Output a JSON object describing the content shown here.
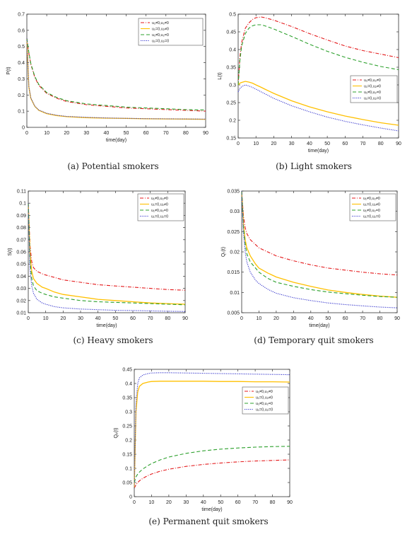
{
  "figure": {
    "colors": {
      "control_1": "#e41a1c",
      "control_2": "#ffc000",
      "control_3": "#2ca02c",
      "control_4": "#3333cc"
    },
    "line_styles": {
      "control_1": "dash-dot",
      "control_2": "solid",
      "control_3": "dashed",
      "control_4": "dotted"
    },
    "legend_labels": [
      "u₁≠0,u₂≠0",
      "u₁=0,u₂≠0",
      "u₁≠0,u₂=0",
      "u₁=0,u₂=0"
    ]
  },
  "chart_data": [
    {
      "id": "a",
      "type": "line",
      "caption": "(a) Potential smokers",
      "xlabel": "time(day)",
      "ylabel": "P(t)",
      "xlim": [
        0,
        90
      ],
      "ylim": [
        0,
        0.7
      ],
      "xticks": [
        0,
        10,
        20,
        30,
        40,
        50,
        60,
        70,
        80,
        90
      ],
      "yticks": [
        0,
        0.1,
        0.2,
        0.3,
        0.4,
        0.5,
        0.6,
        0.7
      ],
      "ytick_labels": [
        "0",
        "0.1",
        "0.2",
        "0.3",
        "0.4",
        "0.5",
        "0.6",
        "0.7"
      ],
      "legend_position": "top-right",
      "x": [
        0,
        1,
        2,
        4,
        6,
        10,
        15,
        20,
        30,
        40,
        50,
        60,
        70,
        80,
        90
      ],
      "series": [
        {
          "name": "u₁≠0,u₂≠0",
          "values": [
            0.55,
            0.46,
            0.39,
            0.31,
            0.26,
            0.21,
            0.18,
            0.16,
            0.14,
            0.13,
            0.12,
            0.115,
            0.11,
            0.105,
            0.1
          ]
        },
        {
          "name": "u₁=0,u₂≠0",
          "values": [
            0.55,
            0.25,
            0.18,
            0.13,
            0.105,
            0.085,
            0.073,
            0.066,
            0.06,
            0.057,
            0.055,
            0.053,
            0.052,
            0.051,
            0.05
          ]
        },
        {
          "name": "u₁≠0,u₂=0",
          "values": [
            0.55,
            0.465,
            0.395,
            0.315,
            0.265,
            0.215,
            0.185,
            0.165,
            0.145,
            0.135,
            0.125,
            0.12,
            0.115,
            0.11,
            0.107
          ]
        },
        {
          "name": "u₁=0,u₂=0",
          "values": [
            0.55,
            0.255,
            0.182,
            0.132,
            0.107,
            0.087,
            0.075,
            0.068,
            0.062,
            0.058,
            0.056,
            0.054,
            0.053,
            0.052,
            0.051
          ]
        }
      ]
    },
    {
      "id": "b",
      "type": "line",
      "caption": "(b) Light smokers",
      "xlabel": "time(day)",
      "ylabel": "L(t)",
      "xlim": [
        0,
        90
      ],
      "ylim": [
        0.15,
        0.5
      ],
      "xticks": [
        0,
        10,
        20,
        30,
        40,
        50,
        60,
        70,
        80,
        90
      ],
      "yticks": [
        0.15,
        0.2,
        0.25,
        0.3,
        0.35,
        0.4,
        0.45,
        0.5
      ],
      "ytick_labels": [
        "0.15",
        "0.2",
        "0.25",
        "0.3",
        "0.35",
        "0.4",
        "0.45",
        "0.5"
      ],
      "legend_position": "bottom-right",
      "x": [
        0,
        1,
        2,
        4,
        6,
        8,
        10,
        13,
        15,
        20,
        30,
        40,
        50,
        60,
        70,
        80,
        90
      ],
      "series": [
        {
          "name": "u₁≠0,u₂≠0",
          "values": [
            0.3,
            0.38,
            0.42,
            0.46,
            0.475,
            0.485,
            0.49,
            0.492,
            0.49,
            0.483,
            0.465,
            0.445,
            0.427,
            0.41,
            0.397,
            0.387,
            0.377
          ]
        },
        {
          "name": "u₁=0,u₂≠0",
          "values": [
            0.3,
            0.305,
            0.307,
            0.31,
            0.308,
            0.305,
            0.3,
            0.293,
            0.288,
            0.276,
            0.255,
            0.238,
            0.224,
            0.212,
            0.202,
            0.193,
            0.186
          ]
        },
        {
          "name": "u₁≠0,u₂=0",
          "values": [
            0.3,
            0.37,
            0.41,
            0.445,
            0.46,
            0.467,
            0.47,
            0.47,
            0.467,
            0.458,
            0.437,
            0.415,
            0.395,
            0.378,
            0.364,
            0.352,
            0.343
          ]
        },
        {
          "name": "u₁=0,u₂=0",
          "values": [
            0.28,
            0.29,
            0.295,
            0.3,
            0.297,
            0.293,
            0.288,
            0.28,
            0.275,
            0.262,
            0.241,
            0.224,
            0.209,
            0.197,
            0.187,
            0.178,
            0.17
          ]
        }
      ]
    },
    {
      "id": "c",
      "type": "line",
      "caption": "(c) Heavy smokers",
      "xlabel": "time(day)",
      "ylabel": "S(t)",
      "xlim": [
        0,
        90
      ],
      "ylim": [
        0.01,
        0.11
      ],
      "xticks": [
        0,
        10,
        20,
        30,
        40,
        50,
        60,
        70,
        80,
        90
      ],
      "yticks": [
        0.01,
        0.02,
        0.03,
        0.04,
        0.05,
        0.06,
        0.07,
        0.08,
        0.09,
        0.1,
        0.11
      ],
      "ytick_labels": [
        "0.01",
        "0.02",
        "0.03",
        "0.04",
        "0.05",
        "0.06",
        "0.07",
        "0.08",
        "0.09",
        "0.1",
        "0.11"
      ],
      "legend_position": "top-right",
      "x": [
        0,
        1,
        2,
        3,
        5,
        8,
        10,
        15,
        20,
        30,
        40,
        50,
        60,
        70,
        80,
        90
      ],
      "series": [
        {
          "name": "u₁≠0,u₂≠0",
          "values": [
            0.1,
            0.065,
            0.052,
            0.047,
            0.044,
            0.042,
            0.041,
            0.039,
            0.037,
            0.035,
            0.033,
            0.032,
            0.031,
            0.03,
            0.029,
            0.0285
          ]
        },
        {
          "name": "u₁=0,u₂≠0",
          "values": [
            0.1,
            0.058,
            0.044,
            0.038,
            0.034,
            0.031,
            0.03,
            0.027,
            0.025,
            0.023,
            0.021,
            0.02,
            0.019,
            0.018,
            0.0175,
            0.017
          ]
        },
        {
          "name": "u₁≠0,u₂=0",
          "values": [
            0.1,
            0.052,
            0.038,
            0.032,
            0.028,
            0.026,
            0.025,
            0.023,
            0.022,
            0.02,
            0.019,
            0.0185,
            0.018,
            0.0175,
            0.017,
            0.0165
          ]
        },
        {
          "name": "u₁=0,u₂=0",
          "values": [
            0.1,
            0.045,
            0.032,
            0.026,
            0.021,
            0.018,
            0.017,
            0.015,
            0.014,
            0.013,
            0.0125,
            0.012,
            0.0118,
            0.0115,
            0.0112,
            0.011
          ]
        }
      ]
    },
    {
      "id": "d",
      "type": "line",
      "caption": "(d) Temporary quit smokers",
      "xlabel": "time(day)",
      "ylabel": "Qₜ(t)",
      "xlim": [
        0,
        90
      ],
      "ylim": [
        0.005,
        0.035
      ],
      "xticks": [
        0,
        10,
        20,
        30,
        40,
        50,
        60,
        70,
        80,
        90
      ],
      "yticks": [
        0.005,
        0.01,
        0.015,
        0.02,
        0.025,
        0.03,
        0.035
      ],
      "ytick_labels": [
        "0.005",
        "0.01",
        "0.015",
        "0.02",
        "0.025",
        "0.03",
        "0.035"
      ],
      "legend_position": "top-right",
      "x": [
        0,
        1,
        2,
        3,
        5,
        8,
        10,
        15,
        20,
        30,
        40,
        50,
        60,
        70,
        80,
        90
      ],
      "series": [
        {
          "name": "u₁≠0,u₂≠0",
          "values": [
            0.035,
            0.029,
            0.026,
            0.0245,
            0.023,
            0.0218,
            0.021,
            0.02,
            0.019,
            0.0178,
            0.0168,
            0.016,
            0.0155,
            0.015,
            0.0146,
            0.0143
          ]
        },
        {
          "name": "u₁=0,u₂≠0",
          "values": [
            0.035,
            0.027,
            0.023,
            0.021,
            0.019,
            0.017,
            0.016,
            0.0148,
            0.0138,
            0.0125,
            0.0115,
            0.0106,
            0.01,
            0.0095,
            0.0091,
            0.0088
          ]
        },
        {
          "name": "u₁≠0,u₂=0",
          "values": [
            0.035,
            0.026,
            0.022,
            0.0195,
            0.0175,
            0.016,
            0.015,
            0.0135,
            0.0125,
            0.0115,
            0.0107,
            0.0101,
            0.0097,
            0.0093,
            0.009,
            0.0088
          ]
        },
        {
          "name": "u₁=0,u₂=0",
          "values": [
            0.035,
            0.025,
            0.02,
            0.0175,
            0.015,
            0.013,
            0.0122,
            0.0108,
            0.0098,
            0.0087,
            0.008,
            0.0074,
            0.007,
            0.0067,
            0.0064,
            0.0062
          ]
        }
      ]
    },
    {
      "id": "e",
      "type": "line",
      "caption": "(e) Permanent quit smokers",
      "xlabel": "time(day)",
      "ylabel": "Qₚ(t)",
      "xlim": [
        0,
        90
      ],
      "ylim": [
        0,
        0.45
      ],
      "xticks": [
        0,
        10,
        20,
        30,
        40,
        50,
        60,
        70,
        80,
        90
      ],
      "yticks": [
        0,
        0.05,
        0.1,
        0.15,
        0.2,
        0.25,
        0.3,
        0.35,
        0.4,
        0.45
      ],
      "ytick_labels": [
        "0",
        "0.05",
        "0.1",
        "0.15",
        "0.2",
        "0.25",
        "0.3",
        "0.35",
        "0.4",
        "0.45"
      ],
      "legend_position": "right",
      "x": [
        0,
        1,
        2,
        3,
        5,
        8,
        10,
        15,
        20,
        30,
        40,
        50,
        60,
        70,
        80,
        90
      ],
      "series": [
        {
          "name": "u₁≠0,u₂≠0",
          "values": [
            0.03,
            0.042,
            0.05,
            0.056,
            0.065,
            0.075,
            0.08,
            0.09,
            0.097,
            0.107,
            0.114,
            0.119,
            0.123,
            0.126,
            0.128,
            0.13
          ]
        },
        {
          "name": "u₁=0,u₂≠0",
          "values": [
            0.03,
            0.3,
            0.37,
            0.39,
            0.4,
            0.405,
            0.407,
            0.408,
            0.408,
            0.408,
            0.408,
            0.407,
            0.407,
            0.406,
            0.406,
            0.405
          ]
        },
        {
          "name": "u₁≠0,u₂=0",
          "values": [
            0.05,
            0.07,
            0.08,
            0.087,
            0.098,
            0.11,
            0.117,
            0.13,
            0.14,
            0.153,
            0.162,
            0.168,
            0.172,
            0.175,
            0.177,
            0.178
          ]
        },
        {
          "name": "u₁=0,u₂=0",
          "values": [
            0.03,
            0.33,
            0.4,
            0.42,
            0.43,
            0.435,
            0.437,
            0.438,
            0.438,
            0.437,
            0.436,
            0.435,
            0.434,
            0.433,
            0.432,
            0.431
          ]
        }
      ]
    }
  ]
}
